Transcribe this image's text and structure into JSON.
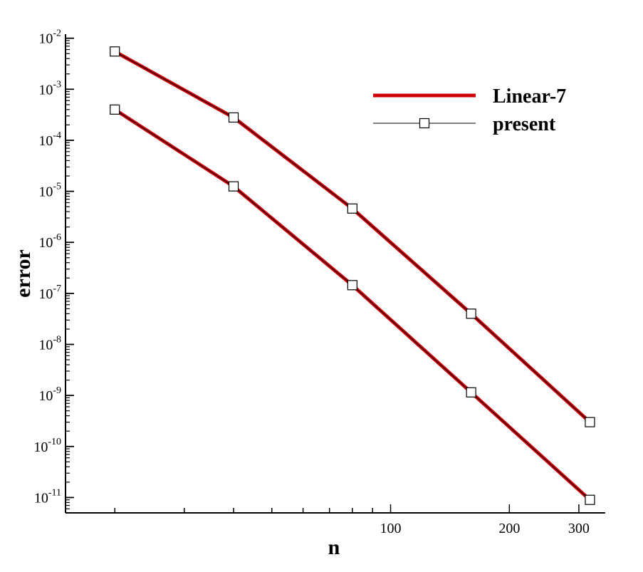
{
  "chart_data": {
    "type": "line",
    "title": "",
    "xlabel": "n",
    "ylabel": "error",
    "xscale": "log",
    "yscale": "log",
    "xlim": [
      15,
      350
    ],
    "ylim": [
      5e-12,
      0.012
    ],
    "grid": false,
    "legend_position": "top-right",
    "x_tick_labels": [
      {
        "value": 100,
        "label": "100"
      },
      {
        "value": 200,
        "label": "200"
      },
      {
        "value": 300,
        "label": "300"
      }
    ],
    "y_tick_labels": [
      {
        "value": 0.01,
        "base": "10",
        "exp": "-2"
      },
      {
        "value": 0.001,
        "base": "10",
        "exp": "-3"
      },
      {
        "value": 0.0001,
        "base": "10",
        "exp": "-4"
      },
      {
        "value": 1e-05,
        "base": "10",
        "exp": "-5"
      },
      {
        "value": 1e-06,
        "base": "10",
        "exp": "-6"
      },
      {
        "value": 1e-07,
        "base": "10",
        "exp": "-7"
      },
      {
        "value": 1e-08,
        "base": "10",
        "exp": "-8"
      },
      {
        "value": 1e-09,
        "base": "10",
        "exp": "-9"
      },
      {
        "value": 1e-10,
        "base": "10",
        "exp": "-10"
      },
      {
        "value": 1e-11,
        "base": "10",
        "exp": "-11"
      }
    ],
    "legend": [
      {
        "label": "Linear-7",
        "style": "thick-line"
      },
      {
        "label": "present",
        "style": "thin-line-square"
      }
    ],
    "colors": {
      "linear7": "#cc0000",
      "present": "#000000",
      "marker_fill": "#ffffff",
      "axis": "#000000"
    },
    "series": [
      {
        "name": "Linear-7",
        "curve": "upper",
        "x": [
          20,
          40,
          80,
          160,
          320
        ],
        "y": [
          0.0055,
          0.00028,
          4.6e-06,
          4e-08,
          3e-10
        ]
      },
      {
        "name": "present",
        "curve": "upper",
        "x": [
          20,
          40,
          80,
          160,
          320
        ],
        "y": [
          0.0055,
          0.00028,
          4.6e-06,
          4e-08,
          3e-10
        ]
      },
      {
        "name": "Linear-7",
        "curve": "lower",
        "x": [
          20,
          40,
          80,
          160,
          320
        ],
        "y": [
          0.0004,
          1.25e-05,
          1.45e-07,
          1.15e-09,
          9e-12
        ]
      },
      {
        "name": "present",
        "curve": "lower",
        "x": [
          20,
          40,
          80,
          160,
          320
        ],
        "y": [
          0.0004,
          1.25e-05,
          1.45e-07,
          1.15e-09,
          9e-12
        ]
      }
    ]
  }
}
